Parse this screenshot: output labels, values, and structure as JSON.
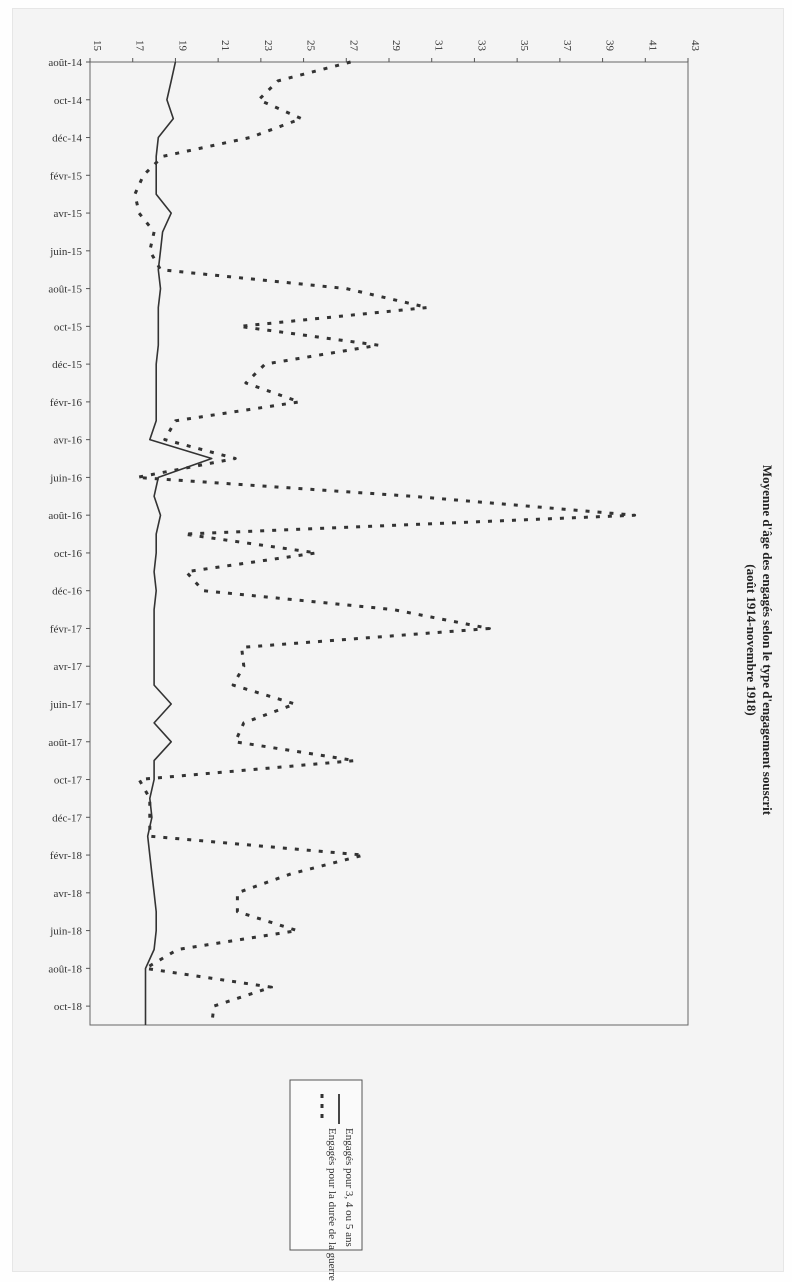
{
  "chart_data": {
    "type": "line",
    "title": "Moyenne d'âge des engagés selon le type d'engagement souscrit",
    "subtitle": "(août 1914-novembre 1918)",
    "xlabel": "",
    "ylabel": "",
    "ylim": [
      15,
      43
    ],
    "grid": false,
    "legend_position": "bottom",
    "orientation": "rotated 90° clockwise (page scanned sideways)",
    "y_ticks": [
      "15",
      "17",
      "19",
      "21",
      "23",
      "25",
      "27",
      "29",
      "31",
      "33",
      "35",
      "37",
      "39",
      "41",
      "43"
    ],
    "x_tick_labels": [
      "août-14",
      "oct-14",
      "déc-14",
      "févr-15",
      "avr-15",
      "juin-15",
      "août-15",
      "oct-15",
      "déc-15",
      "févr-16",
      "avr-16",
      "juin-16",
      "août-16",
      "oct-16",
      "déc-16",
      "févr-17",
      "avr-17",
      "juin-17",
      "août-17",
      "oct-17",
      "déc-17",
      "févr-18",
      "avr-18",
      "juin-18",
      "août-18",
      "oct-18"
    ],
    "x": [
      "août-14",
      "sept-14",
      "oct-14",
      "nov-14",
      "déc-14",
      "janv-15",
      "févr-15",
      "mars-15",
      "avr-15",
      "mai-15",
      "juin-15",
      "juil-15",
      "août-15",
      "sept-15",
      "oct-15",
      "nov-15",
      "déc-15",
      "janv-16",
      "févr-16",
      "mars-16",
      "avr-16",
      "mai-16",
      "juin-16",
      "juil-16",
      "août-16",
      "sept-16",
      "oct-16",
      "nov-16",
      "déc-16",
      "janv-17",
      "févr-17",
      "mars-17",
      "avr-17",
      "mai-17",
      "juin-17",
      "juil-17",
      "août-17",
      "sept-17",
      "oct-17",
      "nov-17",
      "déc-17",
      "janv-18",
      "févr-18",
      "mars-18",
      "avr-18",
      "mai-18",
      "juin-18",
      "juil-18",
      "août-18",
      "sept-18",
      "oct-18",
      "nov-18"
    ],
    "series": [
      {
        "name": "Engagés pour 3, 4 ou 5 ans",
        "style": "solid",
        "values": [
          19.0,
          18.8,
          18.6,
          18.9,
          18.2,
          18.1,
          18.1,
          18.1,
          18.8,
          18.4,
          18.3,
          18.2,
          18.3,
          18.2,
          18.2,
          18.2,
          18.1,
          18.1,
          18.1,
          18.1,
          17.8,
          20.7,
          18.2,
          18.0,
          18.3,
          18.1,
          18.1,
          18.0,
          18.1,
          18.0,
          18.0,
          18.0,
          18.0,
          18.0,
          18.8,
          18.0,
          18.8,
          18.0,
          18.0,
          17.8,
          17.9,
          17.7,
          17.8,
          17.9,
          18.0,
          18.1,
          18.1,
          18.0,
          17.6,
          17.6,
          17.6,
          17.6
        ]
      },
      {
        "name": "Engagés pour la durée de la guerre",
        "style": "dashed",
        "values": [
          27.2,
          23.8,
          22.9,
          24.9,
          22.5,
          18.4,
          17.5,
          17.1,
          17.3,
          18.0,
          17.8,
          18.3,
          27.0,
          30.8,
          22.0,
          28.5,
          23.2,
          22.3,
          24.8,
          19.0,
          18.5,
          21.8,
          17.2,
          30.1,
          40.5,
          19.4,
          25.6,
          19.5,
          20.3,
          29.2,
          33.7,
          22.1,
          22.2,
          21.7,
          24.6,
          22.2,
          21.8,
          27.4,
          17.3,
          17.8,
          17.8,
          17.8,
          27.8,
          24.4,
          21.9,
          21.9,
          24.7,
          19.1,
          17.6,
          23.5,
          20.8,
          20.7
        ]
      }
    ]
  },
  "legend": {
    "items": [
      {
        "label": "Engagés pour 3, 4 ou 5 ans",
        "style": "solid"
      },
      {
        "label": "Engagés pour la durée de la guerre",
        "style": "dashed"
      }
    ]
  }
}
